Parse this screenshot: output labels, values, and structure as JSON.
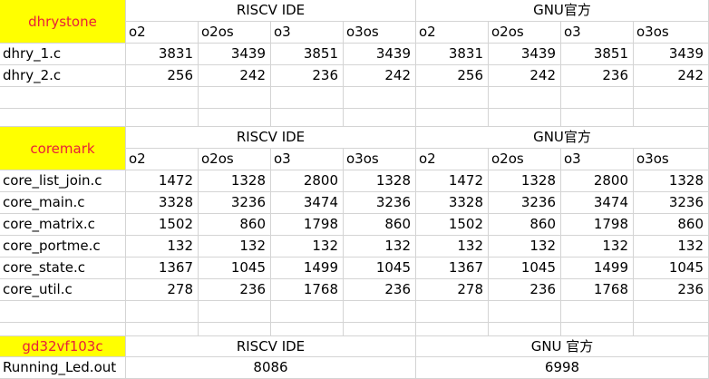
{
  "dhrystone": {
    "title": "dhrystone",
    "group_left": "RISCV IDE",
    "group_right": "GNU官方",
    "columns": [
      "o2",
      "o2os",
      "o3",
      "o3os",
      "o2",
      "o2os",
      "o3",
      "o3os"
    ],
    "rows": [
      {
        "name": "dhry_1.c",
        "values": [
          "3831",
          "3439",
          "3851",
          "3439",
          "3831",
          "3439",
          "3851",
          "3439"
        ]
      },
      {
        "name": "dhry_2.c",
        "values": [
          "256",
          "242",
          "236",
          "242",
          "256",
          "242",
          "236",
          "242"
        ]
      }
    ]
  },
  "coremark": {
    "title": "coremark",
    "group_left": "RISCV IDE",
    "group_right": "GNU官方",
    "columns": [
      "o2",
      "o2os",
      "o3",
      "o3os",
      "o2",
      "o2os",
      "o3",
      "o3os"
    ],
    "rows": [
      {
        "name": "core_list_join.c",
        "values": [
          "1472",
          "1328",
          "2800",
          "1328",
          "1472",
          "1328",
          "2800",
          "1328"
        ]
      },
      {
        "name": "core_main.c",
        "values": [
          "3328",
          "3236",
          "3474",
          "3236",
          "3328",
          "3236",
          "3474",
          "3236"
        ]
      },
      {
        "name": "core_matrix.c",
        "values": [
          "1502",
          "860",
          "1798",
          "860",
          "1502",
          "860",
          "1798",
          "860"
        ]
      },
      {
        "name": "core_portme.c",
        "values": [
          "132",
          "132",
          "132",
          "132",
          "132",
          "132",
          "132",
          "132"
        ]
      },
      {
        "name": "core_state.c",
        "values": [
          "1367",
          "1045",
          "1499",
          "1045",
          "1367",
          "1045",
          "1499",
          "1045"
        ]
      },
      {
        "name": "core_util.c",
        "values": [
          "278",
          "236",
          "1768",
          "236",
          "278",
          "236",
          "1768",
          "236"
        ]
      }
    ]
  },
  "gd32": {
    "title": "gd32vf103c",
    "group_left": "RISCV IDE",
    "group_right": "GNU 官方",
    "row_name": "Running_Led.out",
    "left_value": "8086",
    "right_value": "6998"
  },
  "colors": {
    "highlight_bg": "#ffff00",
    "highlight_text": "#e8203a",
    "grid": "#d4d4d4"
  }
}
